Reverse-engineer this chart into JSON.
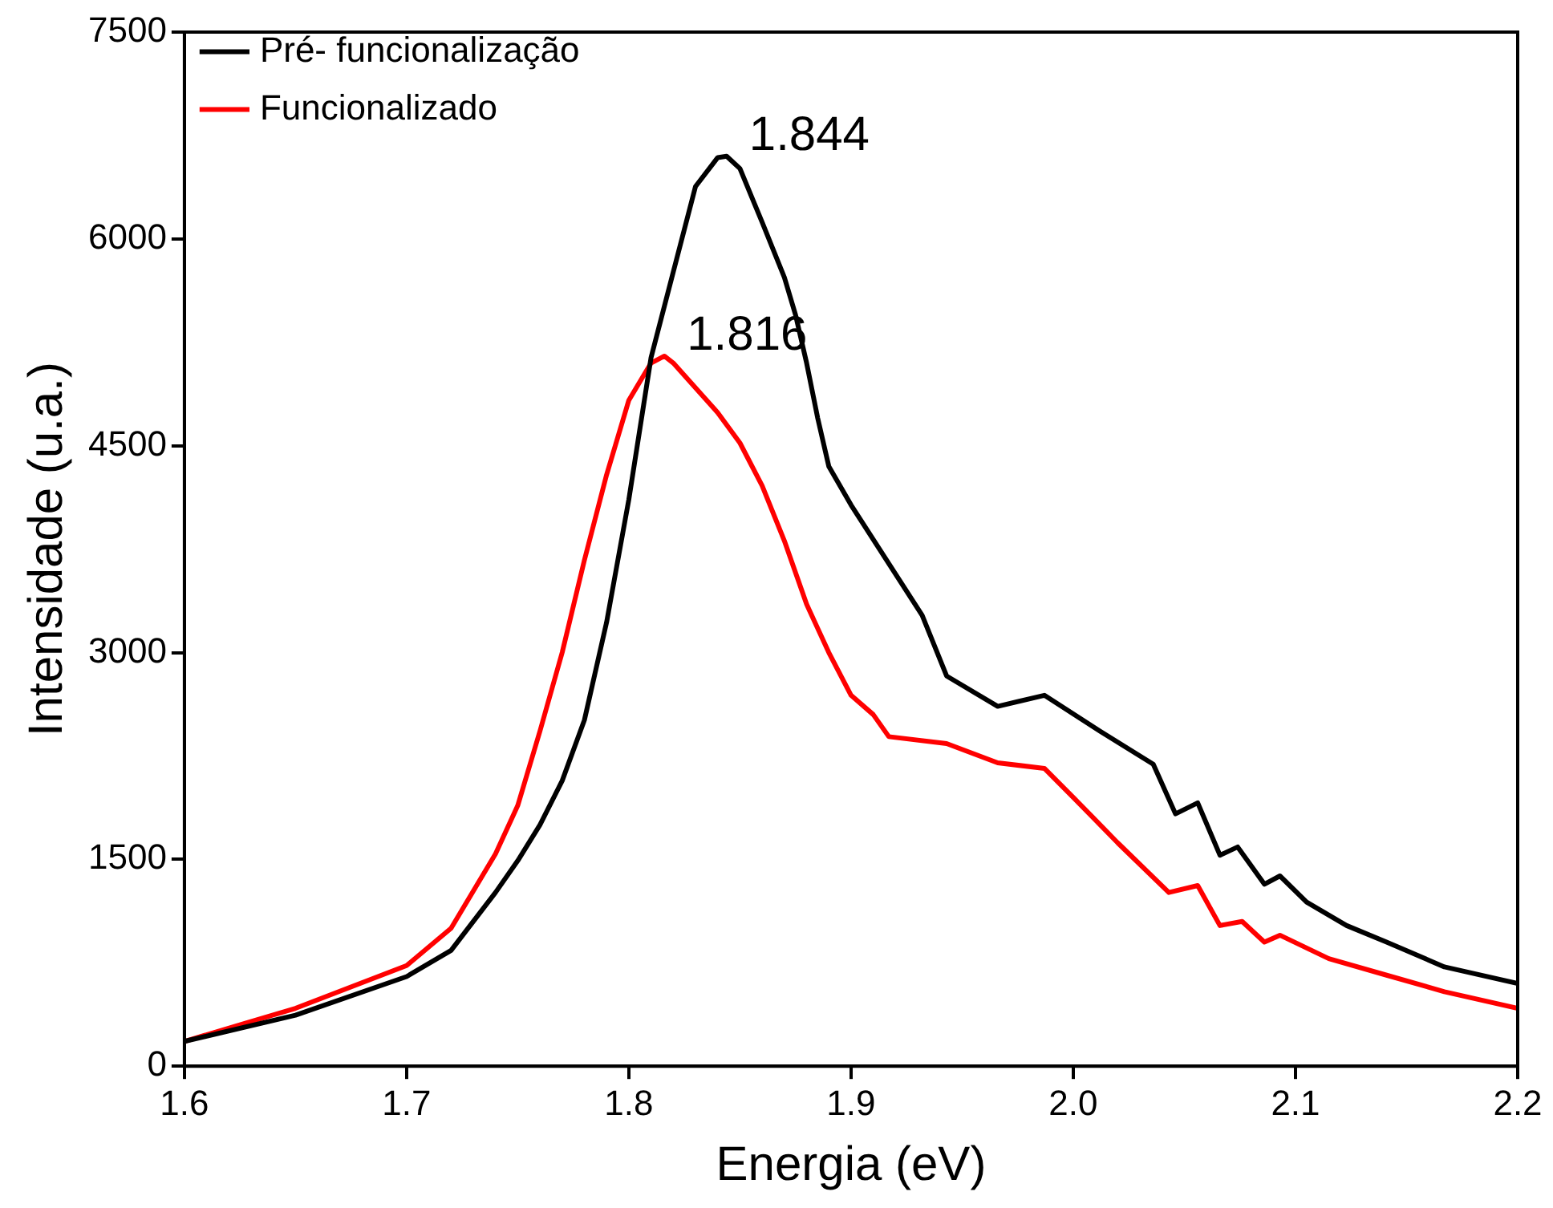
{
  "chart_data": {
    "type": "line",
    "xlabel": "Energia (eV)",
    "ylabel": "Intensidade (u.a.)",
    "xlim": [
      1.6,
      2.2
    ],
    "xticks": [
      1.6,
      1.7,
      1.8,
      1.9,
      {
        "value": 2.0,
        "label": "2.0"
      },
      2.1,
      2.2
    ],
    "ylim": [
      0,
      7500
    ],
    "yticks": [
      0,
      1500,
      3000,
      4500,
      6000,
      7500
    ],
    "grid": false,
    "legend": "top left",
    "marker": "none",
    "line_style": "solid",
    "series": [
      {
        "name": "Pré- funcionalização",
        "color": "#000000",
        "x": [
          1.6,
          1.65,
          1.7,
          1.72,
          1.74,
          1.75,
          1.76,
          1.77,
          1.78,
          1.79,
          1.8,
          1.81,
          1.82,
          1.83,
          1.84,
          1.844,
          1.85,
          1.86,
          1.87,
          1.875,
          1.88,
          1.885,
          1.89,
          1.9,
          1.932,
          1.943,
          1.966,
          1.987,
          2.012,
          2.036,
          2.046,
          2.056,
          2.066,
          2.074,
          2.086,
          2.093,
          2.105,
          2.123,
          2.141,
          2.167,
          2.2
        ],
        "values": [
          180,
          370,
          650,
          840,
          1260,
          1490,
          1750,
          2070,
          2510,
          3220,
          4110,
          5140,
          5760,
          6380,
          6590,
          6600,
          6510,
          6120,
          5720,
          5450,
          5100,
          4700,
          4350,
          4070,
          3270,
          2830,
          2610,
          2690,
          2430,
          2190,
          1830,
          1910,
          1530,
          1590,
          1320,
          1380,
          1190,
          1020,
          900,
          720,
          600
        ]
      },
      {
        "name": "Funcionalizado",
        "color": "#ff0000",
        "x": [
          1.6,
          1.65,
          1.7,
          1.72,
          1.74,
          1.75,
          1.76,
          1.77,
          1.78,
          1.79,
          1.8,
          1.81,
          1.816,
          1.82,
          1.83,
          1.84,
          1.85,
          1.86,
          1.87,
          1.88,
          1.89,
          1.9,
          1.91,
          1.917,
          1.943,
          1.966,
          1.987,
          2.0,
          2.02,
          2.043,
          2.056,
          2.066,
          2.076,
          2.086,
          2.093,
          2.115,
          2.141,
          2.167,
          2.2
        ],
        "values": [
          180,
          420,
          730,
          1000,
          1540,
          1890,
          2430,
          3000,
          3670,
          4290,
          4830,
          5100,
          5150,
          5100,
          4920,
          4740,
          4520,
          4210,
          3810,
          3350,
          3000,
          2690,
          2550,
          2390,
          2340,
          2200,
          2160,
          1950,
          1620,
          1260,
          1310,
          1020,
          1050,
          900,
          950,
          780,
          660,
          540,
          420
        ]
      }
    ],
    "annotations": [
      {
        "text": "1.844",
        "x": 1.844,
        "y": 6600
      },
      {
        "text": "1.816",
        "x": 1.816,
        "y": 5150
      }
    ]
  }
}
